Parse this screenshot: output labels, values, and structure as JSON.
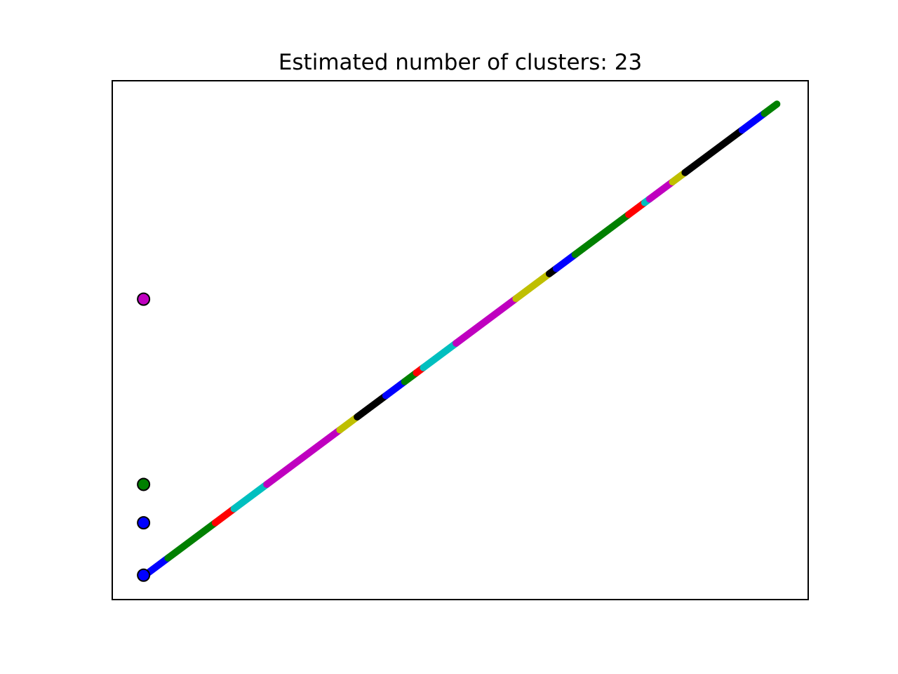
{
  "chart_data": {
    "type": "scatter",
    "title": "Estimated number of clusters: 23",
    "xlabel": "",
    "ylabel": "",
    "xticks": [],
    "yticks": [],
    "xlim": [
      0,
      1
    ],
    "ylim": [
      0,
      1
    ],
    "grid": false,
    "legend": "none",
    "segments": [
      {
        "color": "#0000ff",
        "x": [
          0.045,
          0.08
        ],
        "y": [
          0.045,
          0.08
        ]
      },
      {
        "color": "#008000",
        "x": [
          0.08,
          0.148
        ],
        "y": [
          0.08,
          0.148
        ]
      },
      {
        "color": "#ff0000",
        "x": [
          0.148,
          0.175
        ],
        "y": [
          0.148,
          0.175
        ]
      },
      {
        "color": "#00bfbf",
        "x": [
          0.175,
          0.222
        ],
        "y": [
          0.175,
          0.222
        ]
      },
      {
        "color": "#bf00bf",
        "x": [
          0.222,
          0.327
        ],
        "y": [
          0.222,
          0.327
        ]
      },
      {
        "color": "#bfbf00",
        "x": [
          0.327,
          0.352
        ],
        "y": [
          0.327,
          0.352
        ]
      },
      {
        "color": "#000000",
        "x": [
          0.352,
          0.393
        ],
        "y": [
          0.352,
          0.393
        ]
      },
      {
        "color": "#0000ff",
        "x": [
          0.393,
          0.42
        ],
        "y": [
          0.393,
          0.42
        ]
      },
      {
        "color": "#008000",
        "x": [
          0.42,
          0.437
        ],
        "y": [
          0.42,
          0.437
        ]
      },
      {
        "color": "#ff0000",
        "x": [
          0.437,
          0.447
        ],
        "y": [
          0.437,
          0.447
        ]
      },
      {
        "color": "#00bfbf",
        "x": [
          0.447,
          0.494
        ],
        "y": [
          0.447,
          0.494
        ]
      },
      {
        "color": "#bf00bf",
        "x": [
          0.494,
          0.58
        ],
        "y": [
          0.494,
          0.58
        ]
      },
      {
        "color": "#bfbf00",
        "x": [
          0.58,
          0.628
        ],
        "y": [
          0.58,
          0.628
        ]
      },
      {
        "color": "#000000",
        "x": [
          0.628,
          0.638
        ],
        "y": [
          0.628,
          0.638
        ]
      },
      {
        "color": "#0000ff",
        "x": [
          0.638,
          0.665
        ],
        "y": [
          0.638,
          0.665
        ]
      },
      {
        "color": "#008000",
        "x": [
          0.665,
          0.742
        ],
        "y": [
          0.665,
          0.742
        ]
      },
      {
        "color": "#ff0000",
        "x": [
          0.742,
          0.765
        ],
        "y": [
          0.742,
          0.765
        ]
      },
      {
        "color": "#00bfbf",
        "x": [
          0.765,
          0.772
        ],
        "y": [
          0.765,
          0.772
        ]
      },
      {
        "color": "#bf00bf",
        "x": [
          0.772,
          0.805
        ],
        "y": [
          0.772,
          0.805
        ]
      },
      {
        "color": "#bfbf00",
        "x": [
          0.805,
          0.823
        ],
        "y": [
          0.805,
          0.823
        ]
      },
      {
        "color": "#000000",
        "x": [
          0.823,
          0.905
        ],
        "y": [
          0.823,
          0.905
        ]
      },
      {
        "color": "#0000ff",
        "x": [
          0.905,
          0.937
        ],
        "y": [
          0.905,
          0.937
        ]
      },
      {
        "color": "#008000",
        "x": [
          0.937,
          0.955
        ],
        "y": [
          0.937,
          0.955
        ]
      }
    ],
    "outliers": [
      {
        "color": "#bf00bf",
        "x": 0.045,
        "y": 0.579
      },
      {
        "color": "#008000",
        "x": 0.045,
        "y": 0.222
      },
      {
        "color": "#0000ff",
        "x": 0.045,
        "y": 0.148
      },
      {
        "color": "#0000ff",
        "x": 0.045,
        "y": 0.047
      }
    ]
  }
}
